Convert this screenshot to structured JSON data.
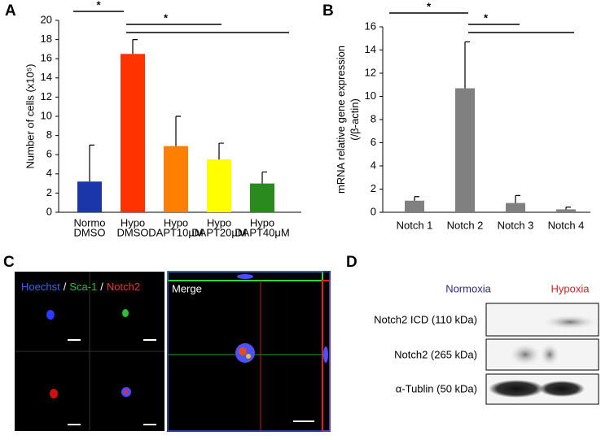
{
  "panel_labels": [
    "A",
    "B",
    "C",
    "D"
  ],
  "chart_data": [
    {
      "type": "bar",
      "ylabel": [
        "Number of cells (x10⁵)"
      ],
      "categories": [
        [
          "Normo",
          "DMSO"
        ],
        [
          "Hypo",
          "DMSO"
        ],
        [
          "Hypo",
          "DAPT10μM"
        ],
        [
          "Hypo",
          "DAPT20μM"
        ],
        [
          "Hypo",
          "DAPT40μM"
        ]
      ],
      "values": [
        3.2,
        16.5,
        6.9,
        5.5,
        3.0
      ],
      "errors": [
        3.8,
        1.5,
        3.1,
        1.7,
        1.2
      ],
      "colors": [
        "#1a36a8",
        "#ff3300",
        "#ff8000",
        "#ffff00",
        "#2a8a1e"
      ],
      "ylim": [
        0,
        20
      ],
      "yticks": [
        0,
        2,
        4,
        6,
        8,
        10,
        12,
        14,
        16,
        18,
        20
      ],
      "annotations": [
        "*",
        "*"
      ]
    },
    {
      "type": "bar",
      "ylabel": [
        "mRNA relative gene expression",
        "(/β-actin)"
      ],
      "categories": [
        [
          "Notch 1"
        ],
        [
          "Notch 2"
        ],
        [
          "Notch 3"
        ],
        [
          "Notch 4"
        ]
      ],
      "values": [
        1.0,
        10.7,
        0.8,
        0.25
      ],
      "errors": [
        0.35,
        4.0,
        0.65,
        0.2
      ],
      "colors": [
        "#808080",
        "#808080",
        "#808080",
        "#808080"
      ],
      "ylim": [
        0,
        16
      ],
      "yticks": [
        0,
        2,
        4,
        6,
        8,
        10,
        12,
        14,
        16
      ],
      "annotations": [
        "*",
        "*"
      ]
    }
  ],
  "microscopy": {
    "channels": [
      "Hoechst",
      "Sca-1",
      "Notch2"
    ],
    "separator": "/",
    "merge": "Merge"
  },
  "blot": {
    "conditions": [
      "Normoxia",
      "Hypoxia"
    ],
    "bands": [
      "Notch2 ICD (110 kDa)",
      "Notch2 (265 kDa)",
      "α-Tublin (50 kDa)"
    ]
  }
}
